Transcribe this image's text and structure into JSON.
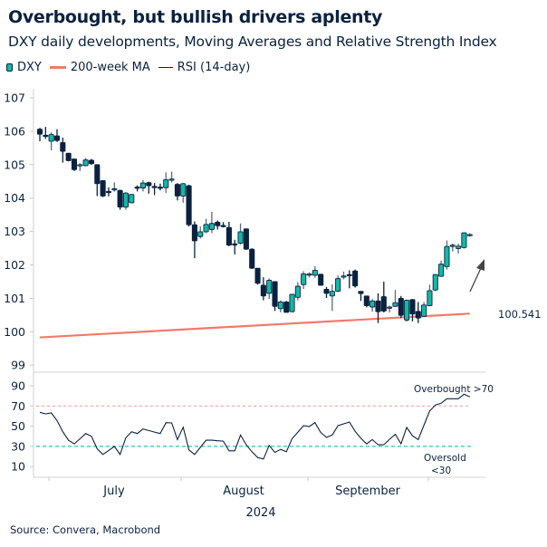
{
  "title": "Overbought, but bullish drivers aplenty",
  "subtitle": "DXY daily developments, Moving Averages and Relative Strength Index",
  "legend": [
    {
      "label": "DXY",
      "color": "#14b8a6"
    },
    {
      "label": "200-week MA",
      "color": "#f07b6b"
    },
    {
      "label": "RSI (14-day)",
      "color": "#0a2240"
    }
  ],
  "source": "Source: Convera, Macrobond",
  "colors": {
    "bull": "#14b8a6",
    "bear": "#0a2240",
    "wick": "#5b6b7c",
    "ma": "#f07b6b",
    "overbought_line": "#f4a3a0",
    "oversold_line": "#35bfae",
    "arrow": "#444444",
    "ma_label": "#e8736a"
  },
  "chart_data": [
    {
      "type": "candlestick",
      "name": "DXY",
      "ylim": [
        99,
        107
      ],
      "yticks": [
        107,
        106,
        105,
        104,
        103,
        102,
        101,
        100,
        99
      ],
      "grid": false,
      "candles_ohlc": [
        [
          106.06,
          106.1,
          105.7,
          105.91
        ],
        [
          105.88,
          106.13,
          105.77,
          105.87
        ],
        [
          105.7,
          105.97,
          105.43,
          105.9
        ],
        [
          105.86,
          106.06,
          105.68,
          105.72
        ],
        [
          105.66,
          105.81,
          105.06,
          105.4
        ],
        [
          105.34,
          105.35,
          105.1,
          105.12
        ],
        [
          105.17,
          105.18,
          104.81,
          104.85
        ],
        [
          104.99,
          105.04,
          104.81,
          105.0
        ],
        [
          104.97,
          105.2,
          104.95,
          105.14
        ],
        [
          105.13,
          105.17,
          104.99,
          105.03
        ],
        [
          105.0,
          105.01,
          104.06,
          104.43
        ],
        [
          104.52,
          104.54,
          104.03,
          104.06
        ],
        [
          104.2,
          104.32,
          104.05,
          104.18
        ],
        [
          104.26,
          104.47,
          104.19,
          104.28
        ],
        [
          104.23,
          104.25,
          103.65,
          103.73
        ],
        [
          103.73,
          104.18,
          103.65,
          104.15
        ],
        [
          103.86,
          104.12,
          103.85,
          104.11
        ],
        [
          104.33,
          104.38,
          104.2,
          104.32
        ],
        [
          104.3,
          104.54,
          104.2,
          104.45
        ],
        [
          104.46,
          104.49,
          104.13,
          104.37
        ],
        [
          104.35,
          104.45,
          104.09,
          104.34
        ],
        [
          104.33,
          104.43,
          104.23,
          104.32
        ],
        [
          104.31,
          104.77,
          104.15,
          104.55
        ],
        [
          104.56,
          104.79,
          104.47,
          104.57
        ],
        [
          104.41,
          104.45,
          103.93,
          104.06
        ],
        [
          104.06,
          104.45,
          103.86,
          104.43
        ],
        [
          104.37,
          104.4,
          103.15,
          103.2
        ],
        [
          103.2,
          103.3,
          102.2,
          102.72
        ],
        [
          102.85,
          103.15,
          102.79,
          102.99
        ],
        [
          102.99,
          103.38,
          102.95,
          103.21
        ],
        [
          103.06,
          103.59,
          102.95,
          103.24
        ],
        [
          103.28,
          103.33,
          103.06,
          103.17
        ],
        [
          103.18,
          103.28,
          103.12,
          103.17
        ],
        [
          103.12,
          103.29,
          102.56,
          102.59
        ],
        [
          102.63,
          102.75,
          102.31,
          102.62
        ],
        [
          102.65,
          103.24,
          102.61,
          102.99
        ],
        [
          103.08,
          103.08,
          102.45,
          102.47
        ],
        [
          102.47,
          102.5,
          101.88,
          101.9
        ],
        [
          101.9,
          101.9,
          101.41,
          101.45
        ],
        [
          101.39,
          101.63,
          100.94,
          101.07
        ],
        [
          101.15,
          101.6,
          100.98,
          101.54
        ],
        [
          101.5,
          101.5,
          100.62,
          100.76
        ],
        [
          100.69,
          100.94,
          100.58,
          100.89
        ],
        [
          100.89,
          100.92,
          100.58,
          100.58
        ],
        [
          100.6,
          101.12,
          100.58,
          101.12
        ],
        [
          101.03,
          101.48,
          100.94,
          101.36
        ],
        [
          101.41,
          101.81,
          101.28,
          101.73
        ],
        [
          101.72,
          101.78,
          101.62,
          101.73
        ],
        [
          101.69,
          101.96,
          101.62,
          101.84
        ],
        [
          101.72,
          101.73,
          101.38,
          101.39
        ],
        [
          101.27,
          101.34,
          101.01,
          101.15
        ],
        [
          101.07,
          101.42,
          100.62,
          101.21
        ],
        [
          101.21,
          101.68,
          101.19,
          101.59
        ],
        [
          101.66,
          101.8,
          101.57,
          101.67
        ],
        [
          101.71,
          101.84,
          101.3,
          101.7
        ],
        [
          101.82,
          101.86,
          101.32,
          101.37
        ],
        [
          101.21,
          101.21,
          100.92,
          101.14
        ],
        [
          101.07,
          101.07,
          100.73,
          100.78
        ],
        [
          100.74,
          100.98,
          100.6,
          100.92
        ],
        [
          100.92,
          101.15,
          100.26,
          100.6
        ],
        [
          101.05,
          101.5,
          100.58,
          100.62
        ],
        [
          100.73,
          100.78,
          100.58,
          100.74
        ],
        [
          100.76,
          101.25,
          100.74,
          100.87
        ],
        [
          101.0,
          101.07,
          100.41,
          100.49
        ],
        [
          100.35,
          100.96,
          100.3,
          100.94
        ],
        [
          100.96,
          100.98,
          100.31,
          100.53
        ],
        [
          100.61,
          100.89,
          100.26,
          100.41
        ],
        [
          100.46,
          100.89,
          100.44,
          100.8
        ],
        [
          100.78,
          101.41,
          100.76,
          101.23
        ],
        [
          101.25,
          101.73,
          101.21,
          101.71
        ],
        [
          101.66,
          102.13,
          101.64,
          102.02
        ],
        [
          101.95,
          102.73,
          101.86,
          102.55
        ],
        [
          102.58,
          102.64,
          102.4,
          102.59
        ],
        [
          102.49,
          102.64,
          102.34,
          102.56
        ],
        [
          102.52,
          102.97,
          102.49,
          102.96
        ],
        [
          102.9,
          102.95,
          102.85,
          102.91
        ]
      ],
      "moving_average": {
        "name": "200-week MA",
        "start": 99.83,
        "end": 100.541,
        "end_label": "100.541"
      },
      "xticks": [
        "July",
        "August",
        "September"
      ],
      "xlabel": "2024"
    },
    {
      "type": "line",
      "name": "RSI (14-day)",
      "ylim": [
        5,
        95
      ],
      "yticks": [
        90,
        70,
        50,
        30,
        10
      ],
      "values": [
        63.7,
        62.2,
        63.1,
        55.6,
        44.5,
        36,
        32.5,
        37.5,
        42.7,
        40,
        27.7,
        22,
        26,
        30,
        22,
        38.5,
        44.5,
        42.7,
        47.2,
        45.7,
        44.2,
        42.7,
        53.5,
        53.2,
        36.7,
        49,
        26.5,
        22,
        29,
        36.1,
        36.1,
        35.6,
        35.2,
        25.6,
        25.6,
        41.2,
        31.6,
        24.7,
        19,
        17.4,
        31,
        24,
        27,
        24.7,
        37.6,
        44,
        50.5,
        49.6,
        53.5,
        43.6,
        39,
        41.2,
        50.5,
        52.3,
        54.1,
        45,
        38,
        32.5,
        36.7,
        31.6,
        31.6,
        37,
        42,
        32.5,
        48.7,
        40.6,
        36.7,
        51,
        65,
        71,
        72.7,
        77.2,
        77.2,
        77.2,
        81.7,
        79
      ],
      "thresholds": {
        "overbought": 70,
        "oversold": 30
      },
      "annotations": {
        "overbought": "Overbought >70",
        "oversold_line1": "Oversold",
        "oversold_line2": "<30"
      }
    }
  ]
}
